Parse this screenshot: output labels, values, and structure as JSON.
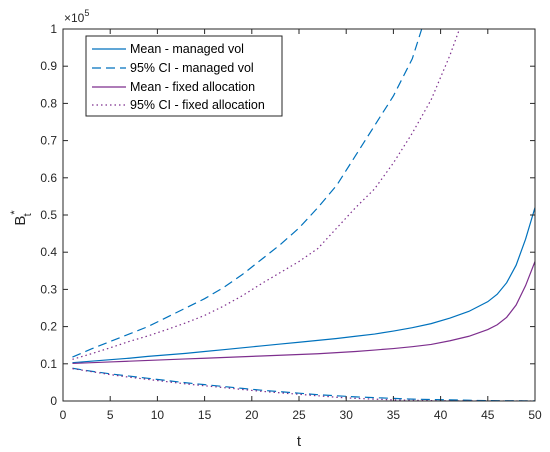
{
  "chart_data": {
    "type": "line",
    "title": "",
    "xlabel": "t",
    "ylabel_main": "B",
    "ylabel_sup": "*",
    "ylabel_sub": "t",
    "y_exponent_label": "×10",
    "y_exponent_power": "5",
    "xlim": [
      0,
      50
    ],
    "ylim": [
      0,
      1
    ],
    "xticks": [
      "0",
      "5",
      "10",
      "15",
      "20",
      "25",
      "30",
      "35",
      "40",
      "45",
      "50"
    ],
    "yticks": [
      "0",
      "0.1",
      "0.2",
      "0.3",
      "0.4",
      "0.5",
      "0.6",
      "0.7",
      "0.8",
      "0.9",
      "1"
    ],
    "grid": false,
    "legend_position": "top-left",
    "colors": {
      "managed": "#0072BD",
      "fixed": "#7E2F8E"
    },
    "series": [
      {
        "name": "Mean - managed vol",
        "style": "solid",
        "color": "#0072BD",
        "x": [
          1,
          3,
          5,
          7,
          9,
          11,
          13,
          15,
          17,
          19,
          21,
          23,
          25,
          27,
          29,
          31,
          33,
          35,
          37,
          39,
          41,
          43,
          45,
          46,
          47,
          48,
          49,
          50
        ],
        "y": [
          0.103,
          0.107,
          0.111,
          0.115,
          0.12,
          0.124,
          0.128,
          0.133,
          0.138,
          0.143,
          0.148,
          0.153,
          0.158,
          0.163,
          0.168,
          0.174,
          0.18,
          0.188,
          0.197,
          0.208,
          0.223,
          0.241,
          0.267,
          0.287,
          0.318,
          0.365,
          0.435,
          0.52
        ]
      },
      {
        "name": "95% CI - managed vol",
        "style": "dashed",
        "color": "#0072BD",
        "x": [
          1,
          3,
          5,
          7,
          9,
          11,
          13,
          15,
          17,
          19,
          21,
          23,
          25,
          27,
          29,
          31,
          33,
          35,
          37,
          38
        ],
        "y": [
          0.118,
          0.14,
          0.16,
          0.18,
          0.2,
          0.225,
          0.25,
          0.275,
          0.305,
          0.34,
          0.38,
          0.42,
          0.465,
          0.52,
          0.58,
          0.66,
          0.74,
          0.82,
          0.92,
          1.0
        ]
      },
      {
        "name": "Mean - fixed allocation",
        "style": "solid",
        "color": "#7E2F8E",
        "x": [
          1,
          3,
          5,
          7,
          9,
          11,
          13,
          15,
          17,
          19,
          21,
          23,
          25,
          27,
          29,
          31,
          33,
          35,
          37,
          39,
          41,
          43,
          45,
          46,
          47,
          48,
          49,
          50
        ],
        "y": [
          0.101,
          0.103,
          0.105,
          0.107,
          0.109,
          0.111,
          0.113,
          0.115,
          0.117,
          0.119,
          0.121,
          0.123,
          0.125,
          0.127,
          0.13,
          0.133,
          0.137,
          0.141,
          0.146,
          0.152,
          0.162,
          0.174,
          0.192,
          0.205,
          0.225,
          0.258,
          0.31,
          0.375
        ]
      },
      {
        "name": "95% CI - fixed allocation",
        "style": "dotted",
        "color": "#7E2F8E",
        "x": [
          1,
          3,
          5,
          7,
          9,
          11,
          13,
          15,
          17,
          19,
          21,
          23,
          25,
          27,
          29,
          31,
          33,
          35,
          37,
          39,
          41,
          42
        ],
        "y": [
          0.112,
          0.127,
          0.143,
          0.16,
          0.175,
          0.192,
          0.21,
          0.23,
          0.255,
          0.283,
          0.315,
          0.345,
          0.375,
          0.41,
          0.465,
          0.52,
          0.57,
          0.64,
          0.72,
          0.81,
          0.93,
          1.0
        ]
      },
      {
        "name": "95% CI lower - managed vol",
        "style": "dashed",
        "color": "#0072BD",
        "legend": false,
        "x": [
          1,
          3,
          5,
          7,
          9,
          11,
          13,
          15,
          17,
          19,
          21,
          23,
          25,
          27,
          29,
          31,
          33,
          35,
          37,
          39,
          41,
          43,
          45,
          47,
          49,
          50
        ],
        "y": [
          0.088,
          0.08,
          0.073,
          0.067,
          0.061,
          0.055,
          0.049,
          0.044,
          0.039,
          0.034,
          0.029,
          0.025,
          0.021,
          0.017,
          0.014,
          0.011,
          0.009,
          0.007,
          0.005,
          0.004,
          0.003,
          0.002,
          0.001,
          0.0008,
          0.0005,
          0.0003
        ]
      },
      {
        "name": "95% CI lower - fixed allocation",
        "style": "dotted",
        "color": "#7E2F8E",
        "legend": false,
        "x": [
          1,
          3,
          5,
          7,
          9,
          11,
          13,
          15,
          17,
          19,
          21,
          23,
          25,
          27,
          29,
          31,
          33,
          35,
          37,
          39,
          41,
          43,
          45,
          47,
          49,
          50
        ],
        "y": [
          0.087,
          0.079,
          0.071,
          0.064,
          0.058,
          0.052,
          0.046,
          0.041,
          0.036,
          0.031,
          0.026,
          0.022,
          0.018,
          0.014,
          0.01,
          0.007,
          0.005,
          0.003,
          0.002,
          0.001,
          0.0006,
          0.0003,
          0.0002,
          0.0001,
          0.0001,
          0.0001
        ]
      }
    ]
  }
}
